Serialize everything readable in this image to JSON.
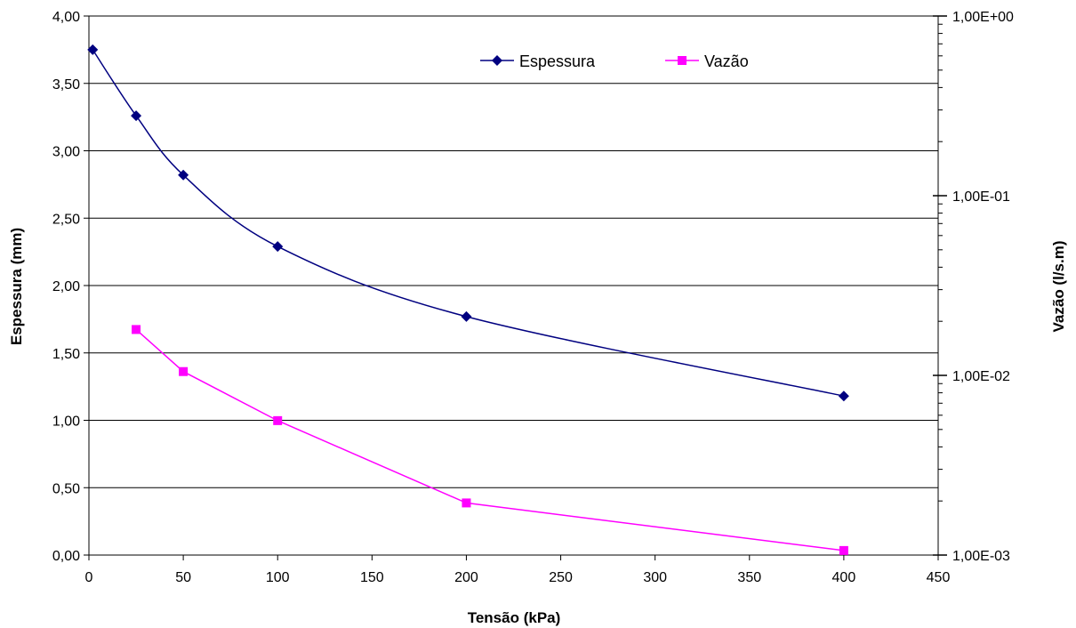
{
  "chart_data": {
    "type": "line",
    "title": "",
    "xlabel": "Tensão (kPa)",
    "ylabel_left": "Espessura (mm)",
    "ylabel_right": "Vazão (l/s.m)",
    "xlim": [
      0,
      450
    ],
    "x_ticks": [
      0,
      50,
      100,
      150,
      200,
      250,
      300,
      350,
      400,
      450
    ],
    "x_tick_labels": [
      "0",
      "50",
      "100",
      "150",
      "200",
      "250",
      "300",
      "350",
      "400",
      "450"
    ],
    "ylim_left": [
      0,
      4
    ],
    "y_left_ticks": [
      0,
      0.5,
      1,
      1.5,
      2,
      2.5,
      3,
      3.5,
      4
    ],
    "y_left_tick_labels": [
      "0,00",
      "0,50",
      "1,00",
      "1,50",
      "2,00",
      "2,50",
      "3,00",
      "3,50",
      "4,00"
    ],
    "y_right_scale": "log",
    "ylim_right": [
      0.001,
      1
    ],
    "y_right_ticks": [
      0.001,
      0.01,
      0.1,
      1
    ],
    "y_right_tick_labels": [
      "1,00E-03",
      "1,00E-02",
      "1,00E-01",
      "1,00E+00"
    ],
    "grid": "horizontal",
    "legend_position": "top-center",
    "series": [
      {
        "name": "Espessura",
        "axis": "left",
        "color": "#000080",
        "marker": "diamond",
        "smooth": true,
        "x": [
          2,
          25,
          50,
          100,
          200,
          400
        ],
        "y": [
          3.75,
          3.26,
          2.82,
          2.29,
          1.77,
          1.18
        ]
      },
      {
        "name": "Vazão",
        "axis": "right",
        "color": "#FF00FF",
        "marker": "square",
        "smooth": false,
        "x": [
          25,
          50,
          100,
          200,
          400
        ],
        "y": [
          0.018,
          0.0105,
          0.0056,
          0.00195,
          0.00106
        ]
      }
    ]
  }
}
